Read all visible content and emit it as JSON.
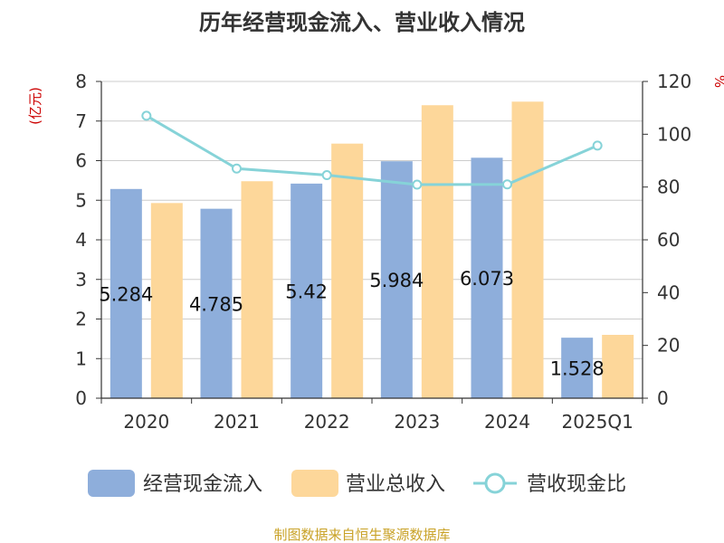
{
  "chart_data": {
    "type": "bar",
    "title": "历年经营现金流入、营业收入情况",
    "left_axis_label": "(亿元)",
    "right_axis_label": "%",
    "categories": [
      "2020",
      "2021",
      "2022",
      "2023",
      "2024",
      "2025Q1"
    ],
    "left_ylim": [
      0,
      8
    ],
    "left_ticks": [
      0,
      1,
      2,
      3,
      4,
      5,
      6,
      7,
      8
    ],
    "right_ylim": [
      0,
      120
    ],
    "right_ticks": [
      0,
      20,
      40,
      60,
      80,
      100,
      120
    ],
    "grid": true,
    "legend_position": "bottom",
    "series": [
      {
        "name": "经营现金流入",
        "type": "bar",
        "axis": "left",
        "color": "#8eaedb",
        "values": [
          5.284,
          4.785,
          5.42,
          5.984,
          6.073,
          1.528
        ],
        "labels": [
          "5.284",
          "4.785",
          "5.42",
          "5.984",
          "6.073",
          "1.528"
        ]
      },
      {
        "name": "营业总收入",
        "type": "bar",
        "axis": "left",
        "color": "#fdd79a",
        "values": [
          4.93,
          5.48,
          6.43,
          7.4,
          7.49,
          1.6
        ]
      },
      {
        "name": "营收现金比",
        "type": "line",
        "axis": "right",
        "color": "#86d3d8",
        "values": [
          107.0,
          87.0,
          84.5,
          80.9,
          81.0,
          95.7
        ]
      }
    ]
  },
  "source": "制图数据来自恒生聚源数据库",
  "colors": {
    "title": "#333333",
    "axis_label": "#cc0000",
    "tick": "#333333",
    "grid": "#cccccc",
    "source": "#c9a227"
  }
}
